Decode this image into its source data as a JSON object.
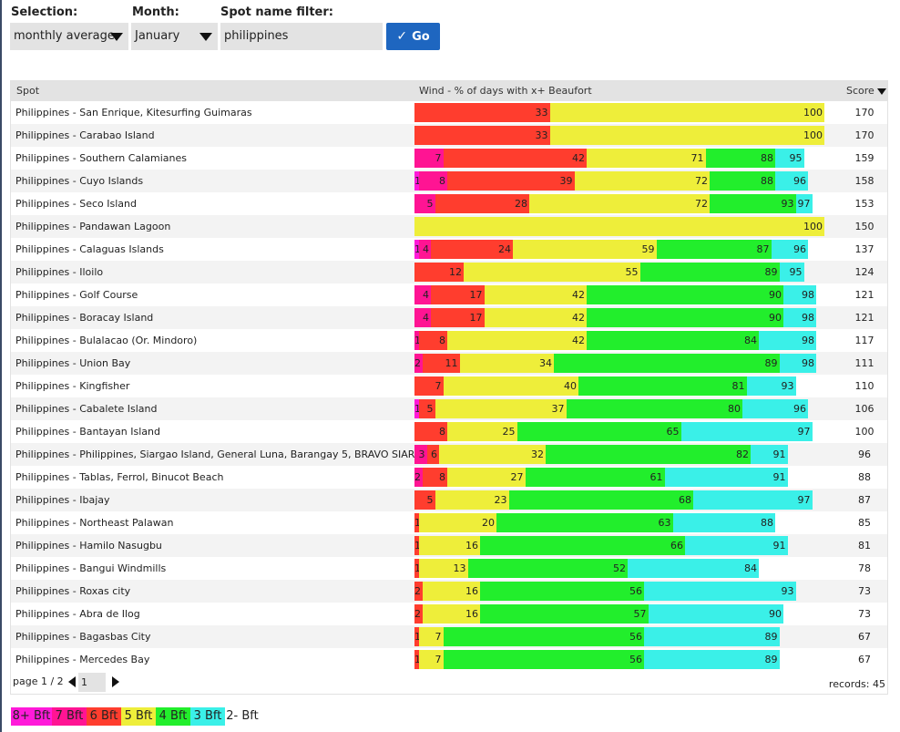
{
  "filters": {
    "selection_label": "Selection:",
    "selection_value": "monthly average",
    "month_label": "Month:",
    "month_value": "January",
    "spot_filter_label": "Spot name filter:",
    "spot_filter_value": "philippines",
    "go_label": "Go"
  },
  "table": {
    "headers": {
      "spot": "Spot",
      "wind": "Wind - % of days with x+ Beaufort",
      "score": "Score"
    },
    "rows": [
      {
        "name": "Philippines - San Enrique, Kitesurfing Guimaras",
        "w8": 0,
        "w7": 0,
        "w6": 33,
        "w5": 100,
        "w4": 100,
        "w3": 100,
        "score": 170
      },
      {
        "name": "Philippines - Carabao Island",
        "w8": 0,
        "w7": 0,
        "w6": 33,
        "w5": 100,
        "w4": 100,
        "w3": 100,
        "score": 170
      },
      {
        "name": "Philippines - Southern Calamianes",
        "w8": 0,
        "w7": 7,
        "w6": 42,
        "w5": 71,
        "w4": 88,
        "w3": 95,
        "score": 159
      },
      {
        "name": "Philippines - Cuyo Islands",
        "w8": 1,
        "w7": 8,
        "w6": 39,
        "w5": 72,
        "w4": 88,
        "w3": 96,
        "score": 158
      },
      {
        "name": "Philippines - Seco Island",
        "w8": 0,
        "w7": 5,
        "w6": 28,
        "w5": 72,
        "w4": 93,
        "w3": 97,
        "score": 153
      },
      {
        "name": "Philippines - Pandawan Lagoon",
        "w8": 0,
        "w7": 0,
        "w6": 0,
        "w5": 100,
        "w4": 100,
        "w3": 100,
        "score": 150
      },
      {
        "name": "Philippines - Calaguas Islands",
        "w8": 1,
        "w7": 4,
        "w6": 24,
        "w5": 59,
        "w4": 87,
        "w3": 96,
        "score": 137
      },
      {
        "name": "Philippines - Iloilo",
        "w8": 0,
        "w7": 0,
        "w6": 12,
        "w5": 55,
        "w4": 89,
        "w3": 95,
        "score": 124
      },
      {
        "name": "Philippines - Golf Course",
        "w8": 0,
        "w7": 4,
        "w6": 17,
        "w5": 42,
        "w4": 90,
        "w3": 98,
        "score": 121
      },
      {
        "name": "Philippines - Boracay Island",
        "w8": 0,
        "w7": 4,
        "w6": 17,
        "w5": 42,
        "w4": 90,
        "w3": 98,
        "score": 121
      },
      {
        "name": "Philippines - Bulalacao (Or. Mindoro)",
        "w8": 0,
        "w7": 1,
        "w6": 8,
        "w5": 42,
        "w4": 84,
        "w3": 98,
        "score": 117
      },
      {
        "name": "Philippines - Union Bay",
        "w8": 0,
        "w7": 2,
        "w6": 11,
        "w5": 34,
        "w4": 89,
        "w3": 98,
        "score": 111
      },
      {
        "name": "Philippines - Kingfisher",
        "w8": 0,
        "w7": 0,
        "w6": 7,
        "w5": 40,
        "w4": 81,
        "w3": 93,
        "score": 110
      },
      {
        "name": "Philippines - Cabalete Island",
        "w8": 1,
        "w7": 1,
        "w6": 5,
        "w5": 37,
        "w4": 80,
        "w3": 96,
        "score": 106
      },
      {
        "name": "Philippines - Bantayan Island",
        "w8": 0,
        "w7": 0,
        "w6": 8,
        "w5": 25,
        "w4": 65,
        "w3": 97,
        "score": 100
      },
      {
        "name": "Philippines - Philippines, Siargao Island, General Luna, Barangay 5, BRAVO SIARGAO",
        "w8": 0,
        "w7": 3,
        "w6": 6,
        "w5": 32,
        "w4": 82,
        "w3": 91,
        "score": 96
      },
      {
        "name": "Philippines - Tablas, Ferrol, Binucot Beach",
        "w8": 0,
        "w7": 2,
        "w6": 8,
        "w5": 27,
        "w4": 61,
        "w3": 91,
        "score": 88
      },
      {
        "name": "Philippines - Ibajay",
        "w8": 0,
        "w7": 0,
        "w6": 5,
        "w5": 23,
        "w4": 68,
        "w3": 97,
        "score": 87
      },
      {
        "name": "Philippines - Northeast Palawan",
        "w8": 0,
        "w7": 0,
        "w6": 1,
        "w5": 20,
        "w4": 63,
        "w3": 88,
        "score": 85
      },
      {
        "name": "Philippines - Hamilo Nasugbu",
        "w8": 0,
        "w7": 0,
        "w6": 1,
        "w5": 16,
        "w4": 66,
        "w3": 91,
        "score": 81
      },
      {
        "name": "Philippines - Bangui Windmills",
        "w8": 0,
        "w7": 0,
        "w6": 1,
        "w5": 13,
        "w4": 52,
        "w3": 84,
        "score": 78
      },
      {
        "name": "Philippines - Roxas city",
        "w8": 0,
        "w7": 0,
        "w6": 2,
        "w5": 16,
        "w4": 56,
        "w3": 93,
        "score": 73
      },
      {
        "name": "Philippines - Abra de Ilog",
        "w8": 0,
        "w7": 0,
        "w6": 2,
        "w5": 16,
        "w4": 57,
        "w3": 90,
        "score": 73
      },
      {
        "name": "Philippines - Bagasbas City",
        "w8": 0,
        "w7": 0,
        "w6": 1,
        "w5": 7,
        "w4": 56,
        "w3": 89,
        "score": 67
      },
      {
        "name": "Philippines - Mercedes Bay",
        "w8": 0,
        "w7": 0,
        "w6": 1,
        "w5": 7,
        "w4": 56,
        "w3": 89,
        "score": 67
      }
    ]
  },
  "pagination": {
    "page_text": "page 1 / 2",
    "current_page": "1",
    "records_text": "records: 45"
  },
  "legend": [
    {
      "label": "8+ Bft",
      "color": "#ff1ad9"
    },
    {
      "label": "7 Bft",
      "color": "#ff1493"
    },
    {
      "label": "6 Bft",
      "color": "#ff3d2e"
    },
    {
      "label": "5 Bft",
      "color": "#eeee3a"
    },
    {
      "label": "4 Bft",
      "color": "#22ee2c"
    },
    {
      "label": "3 Bft",
      "color": "#3af0e8"
    },
    {
      "label": "2- Bft",
      "color": "#ffffff"
    }
  ],
  "colors": {
    "go_button": "#1e66c0",
    "field_bg": "#e3e3e3",
    "header_bg": "#e3e3e3"
  },
  "icons": {
    "dropdown": "triangle-down-icon",
    "go": "checkmark-icon",
    "sort": "sort-desc-icon",
    "prev": "arrow-left-icon",
    "next": "arrow-right-icon"
  }
}
